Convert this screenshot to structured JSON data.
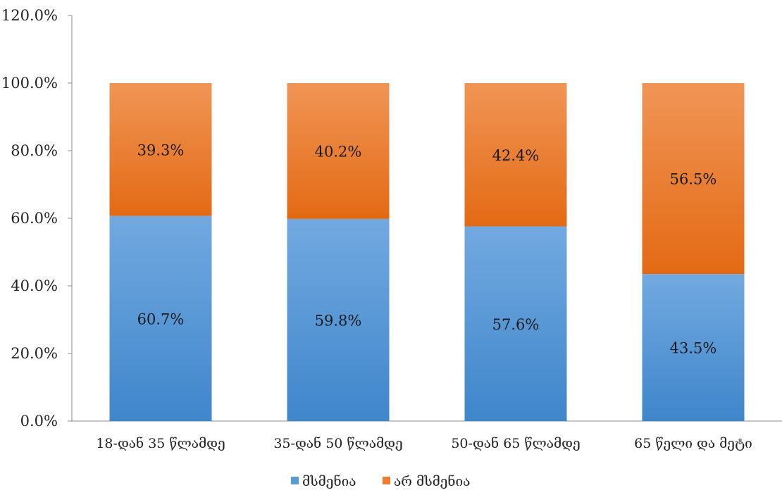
{
  "chart_data": {
    "type": "bar",
    "stacked": true,
    "categories": [
      "18-დან  35  წლამდე",
      "35-დან  50  წლამდე",
      "50-დან  65  წლამდე",
      "65  წელი  და  მეტი"
    ],
    "series": [
      {
        "name": "მსმენია",
        "values": [
          60.7,
          59.8,
          57.6,
          43.5
        ],
        "labels": [
          "60.7%",
          "59.8%",
          "57.6%",
          "43.5%"
        ],
        "color": "#5b9bd5"
      },
      {
        "name": "არ  მსმენია",
        "values": [
          39.3,
          40.2,
          42.4,
          56.5
        ],
        "labels": [
          "39.3%",
          "40.2%",
          "42.4%",
          "56.5%"
        ],
        "color": "#ed7d31"
      }
    ],
    "y_ticks": [
      "0.0%",
      "20.0%",
      "40.0%",
      "60.0%",
      "80.0%",
      "100.0%",
      "120.0%"
    ],
    "ylim": [
      0,
      120
    ],
    "grid": false,
    "legend_position": "bottom"
  }
}
